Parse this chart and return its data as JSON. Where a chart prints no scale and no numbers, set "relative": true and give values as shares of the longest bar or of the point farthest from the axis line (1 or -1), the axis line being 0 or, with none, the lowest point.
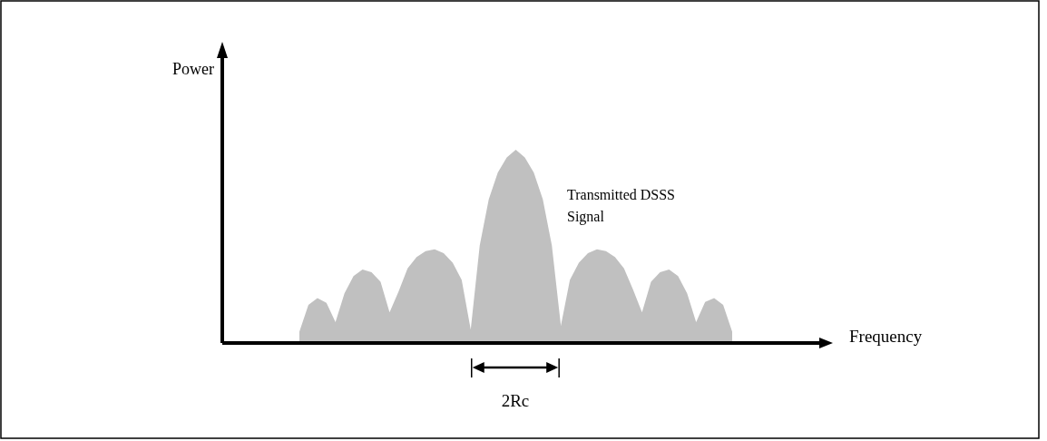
{
  "chart_data": {
    "type": "area",
    "relative": true,
    "categories": [
      null,
      null,
      null,
      null,
      null,
      null,
      null,
      null,
      null,
      null,
      null,
      null,
      null,
      null,
      null,
      null,
      null,
      null,
      null,
      null,
      null,
      null,
      null,
      null,
      null,
      null,
      null,
      null,
      null,
      null,
      null,
      null,
      null,
      null,
      null,
      null,
      null,
      null,
      null,
      null,
      null,
      null,
      null,
      null,
      null,
      null,
      null,
      null,
      null
    ],
    "series": [
      {
        "color": "#c0c0c0",
        "values": [
          0.05,
          0.19,
          0.225,
          0.2,
          0.1,
          0.25,
          0.34,
          0.375,
          0.36,
          0.31,
          0.15,
          0.26,
          0.38,
          0.44,
          0.47,
          0.48,
          0.46,
          0.41,
          0.32,
          0.06,
          0.5,
          0.74,
          0.88,
          0.96,
          1,
          0.96,
          0.88,
          0.74,
          0.5,
          0.08,
          0.32,
          0.41,
          0.46,
          0.48,
          0.47,
          0.44,
          0.38,
          0.27,
          0.15,
          0.31,
          0.36,
          0.375,
          0.34,
          0.25,
          0.1,
          0.205,
          0.225,
          0.19,
          0.05
        ]
      }
    ],
    "annotations": [
      "Power",
      "Frequency",
      "Transmitted DSSS Signal",
      "2Rc"
    ]
  }
}
